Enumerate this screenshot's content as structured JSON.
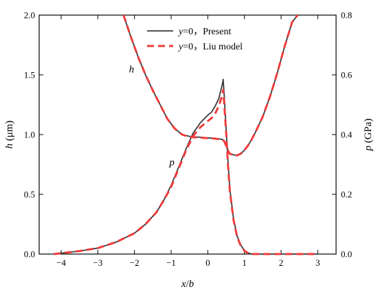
{
  "chart_data": {
    "type": "line",
    "x_label_parts": [
      {
        "text": "x",
        "italic": true
      },
      {
        "text": "/",
        "italic": false
      },
      {
        "text": "b",
        "italic": true
      }
    ],
    "y_left_label_parts": [
      {
        "text": "h",
        "italic": true
      },
      {
        "text": " (μm)",
        "italic": false
      }
    ],
    "y_right_label_parts": [
      {
        "text": "p",
        "italic": true
      },
      {
        "text": " (GPa)",
        "italic": false
      }
    ],
    "xlim": [
      -4.6,
      3.5
    ],
    "ylim_left": [
      0,
      2.0
    ],
    "ylim_right": [
      0,
      0.8
    ],
    "x_ticks": [
      -4,
      -3,
      -2,
      -1,
      0,
      1,
      2,
      3
    ],
    "x_tick_labels": [
      "−4",
      "−3",
      "−2",
      "−1",
      "0",
      "1",
      "2",
      "3"
    ],
    "y_left_ticks": [
      0,
      0.5,
      1.0,
      1.5,
      2.0
    ],
    "y_left_tick_labels": [
      "0.0",
      "0.5",
      "1.0",
      "1.5",
      "2.0"
    ],
    "y_right_ticks": [
      0,
      0.2,
      0.4,
      0.6,
      0.8
    ],
    "y_right_tick_labels": [
      "0.0",
      "0.2",
      "0.4",
      "0.6",
      "0.8"
    ],
    "grid": false,
    "legend_position": "top-center",
    "legend": [
      {
        "italic": "y",
        "text": "=0，Present",
        "color": "#3a3a3a",
        "dash": "solid"
      },
      {
        "italic": "y",
        "text": "=0，Liu model",
        "color": "#ef3b3b",
        "dash": "dashed"
      }
    ],
    "annotations": [
      {
        "text": "h",
        "x": -2.15,
        "y": 1.52
      },
      {
        "text": "p",
        "x": -1.05,
        "y": 0.74
      }
    ],
    "colors": {
      "present": "#3a3a3a",
      "liu": "#ef3b3b"
    },
    "series": [
      {
        "key": "h_present",
        "axis": "left",
        "style": "present",
        "x": [
          -2.3,
          -2.1,
          -1.9,
          -1.7,
          -1.5,
          -1.3,
          -1.1,
          -0.9,
          -0.7,
          -0.5,
          -0.3,
          -0.1,
          0.1,
          0.2,
          0.3,
          0.35,
          0.4,
          0.45,
          0.5,
          0.55,
          0.6,
          0.7,
          0.8,
          0.9,
          1.0,
          1.1,
          1.2,
          1.3,
          1.5,
          1.7,
          1.9,
          2.1,
          2.3,
          2.45
        ],
        "y": [
          2.0,
          1.82,
          1.65,
          1.5,
          1.37,
          1.25,
          1.13,
          1.05,
          1.0,
          0.985,
          0.98,
          0.975,
          0.97,
          0.968,
          0.965,
          0.962,
          0.958,
          0.95,
          0.91,
          0.87,
          0.845,
          0.83,
          0.828,
          0.84,
          0.87,
          0.91,
          0.96,
          1.02,
          1.15,
          1.32,
          1.52,
          1.74,
          1.94,
          2.0
        ]
      },
      {
        "key": "h_liu",
        "axis": "left",
        "style": "liu",
        "x": [
          -2.3,
          -2.1,
          -1.9,
          -1.7,
          -1.5,
          -1.3,
          -1.1,
          -0.9,
          -0.7,
          -0.5,
          -0.3,
          -0.1,
          0.1,
          0.2,
          0.3,
          0.35,
          0.4,
          0.45,
          0.5,
          0.55,
          0.6,
          0.7,
          0.8,
          0.9,
          1.0,
          1.1,
          1.2,
          1.3,
          1.5,
          1.7,
          1.9,
          2.1,
          2.3,
          2.45
        ],
        "y": [
          2.0,
          1.82,
          1.65,
          1.5,
          1.37,
          1.25,
          1.13,
          1.05,
          1.0,
          0.98,
          0.975,
          0.972,
          0.968,
          0.966,
          0.962,
          0.958,
          0.955,
          0.945,
          0.905,
          0.865,
          0.84,
          0.825,
          0.826,
          0.84,
          0.87,
          0.91,
          0.96,
          1.02,
          1.15,
          1.32,
          1.52,
          1.74,
          1.94,
          2.0
        ]
      },
      {
        "key": "p_present",
        "axis": "right",
        "style": "present",
        "x": [
          -4.2,
          -3.5,
          -3.0,
          -2.5,
          -2.0,
          -1.7,
          -1.4,
          -1.2,
          -1.0,
          -0.8,
          -0.6,
          -0.4,
          -0.2,
          0.0,
          0.1,
          0.2,
          0.3,
          0.35,
          0.4,
          0.42,
          0.45,
          0.5,
          0.55,
          0.6,
          0.7,
          0.8,
          0.9,
          1.0,
          1.1,
          1.2,
          1.5,
          2.0,
          3.0
        ],
        "y": [
          0.0,
          0.01,
          0.02,
          0.04,
          0.07,
          0.1,
          0.14,
          0.18,
          0.23,
          0.29,
          0.35,
          0.405,
          0.44,
          0.465,
          0.475,
          0.495,
          0.52,
          0.545,
          0.57,
          0.585,
          0.53,
          0.42,
          0.31,
          0.22,
          0.12,
          0.06,
          0.03,
          0.012,
          0.004,
          0.0,
          0.0,
          0.0,
          0.0
        ]
      },
      {
        "key": "p_liu",
        "axis": "right",
        "style": "liu",
        "x": [
          -4.2,
          -3.5,
          -3.0,
          -2.5,
          -2.0,
          -1.7,
          -1.4,
          -1.2,
          -1.0,
          -0.8,
          -0.6,
          -0.4,
          -0.2,
          0.0,
          0.1,
          0.2,
          0.3,
          0.35,
          0.4,
          0.42,
          0.45,
          0.5,
          0.55,
          0.6,
          0.7,
          0.8,
          0.9,
          1.0,
          1.1,
          1.2,
          1.5,
          2.0,
          3.0
        ],
        "y": [
          0.0,
          0.01,
          0.02,
          0.04,
          0.07,
          0.1,
          0.14,
          0.18,
          0.225,
          0.285,
          0.345,
          0.395,
          0.425,
          0.445,
          0.455,
          0.47,
          0.495,
          0.515,
          0.535,
          0.55,
          0.5,
          0.41,
          0.3,
          0.215,
          0.115,
          0.058,
          0.028,
          0.011,
          0.003,
          0.0,
          0.0,
          0.0,
          0.0
        ]
      }
    ]
  }
}
